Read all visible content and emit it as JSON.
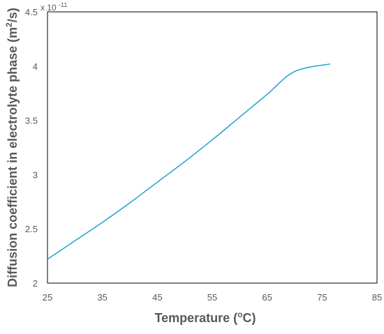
{
  "chart_data": {
    "type": "line",
    "xlabel_main": "Temperature (",
    "xlabel_sup": "o",
    "xlabel_end": "C)",
    "ylabel_main": "Diffusion coefficient in electrolyte phase (m",
    "ylabel_sup": "2",
    "ylabel_end": "/s)",
    "y_multiplier_base": "x 10",
    "y_multiplier_exp": "-11",
    "xlim": [
      25,
      85
    ],
    "ylim": [
      2,
      4.5
    ],
    "x_ticks": [
      "25",
      "35",
      "45",
      "55",
      "65",
      "75",
      "85"
    ],
    "y_ticks": [
      "2",
      "2.5",
      "3",
      "3.5",
      "4",
      "4.5"
    ],
    "grid": false,
    "legend": "none",
    "series": [
      {
        "color": "#1fa0d2",
        "x": [
          25,
          30,
          35,
          40,
          45,
          50,
          55,
          60,
          65,
          70,
          76.5
        ],
        "y": [
          2.22,
          2.39,
          2.56,
          2.74,
          2.93,
          3.12,
          3.32,
          3.53,
          3.74,
          3.95,
          4.02
        ]
      }
    ]
  }
}
